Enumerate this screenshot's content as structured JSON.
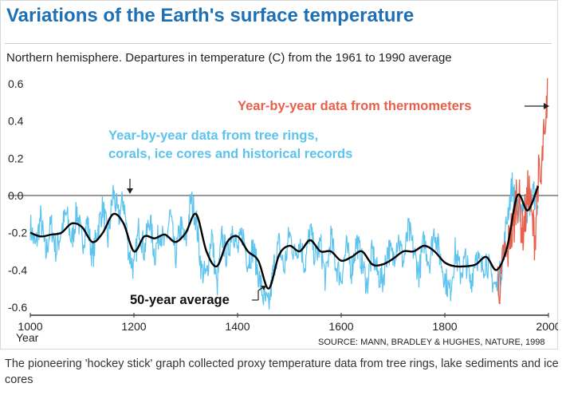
{
  "chart_data": {
    "type": "line",
    "title": "Variations of the Earth's surface temperature",
    "subtitle": "Northern hemisphere. Departures in temperature (C) from the 1961 to 1990 average",
    "xlabel": "Year",
    "ylabel": "",
    "xlim": [
      1000,
      2000
    ],
    "ylim": [
      -0.62,
      0.68
    ],
    "x_ticks": [
      "1000",
      "1200",
      "1400",
      "1600",
      "1800",
      "2000"
    ],
    "y_ticks": [
      "0.6",
      "0.4",
      "0.2",
      "0.0",
      "-0.2",
      "-0.4",
      "-0.6"
    ],
    "grid": "zero line only",
    "colors": {
      "proxy": "#5cc3ee",
      "thermometer": "#e8604a",
      "average": "#000000",
      "title": "#1e6fb4"
    },
    "annotations": {
      "thermometers": "Year-by-year data from thermometers",
      "proxy_line1": "Year-by-year data from tree rings,",
      "proxy_line2": "corals, ice cores and historical records",
      "average": "50-year average"
    },
    "source": "SOURCE: MANN, BRADLEY & HUGHES, NATURE, 1998",
    "series": [
      {
        "name": "50-year average",
        "x": [
          1000,
          1020,
          1040,
          1060,
          1080,
          1100,
          1120,
          1140,
          1160,
          1180,
          1200,
          1220,
          1240,
          1260,
          1280,
          1300,
          1320,
          1340,
          1360,
          1380,
          1400,
          1420,
          1440,
          1460,
          1480,
          1500,
          1520,
          1540,
          1560,
          1580,
          1600,
          1620,
          1640,
          1660,
          1680,
          1700,
          1720,
          1740,
          1760,
          1780,
          1800,
          1820,
          1840,
          1860,
          1880,
          1900,
          1920,
          1940,
          1960,
          1980
        ],
        "values": [
          -0.2,
          -0.22,
          -0.21,
          -0.2,
          -0.15,
          -0.17,
          -0.25,
          -0.2,
          -0.1,
          -0.15,
          -0.3,
          -0.22,
          -0.23,
          -0.21,
          -0.25,
          -0.2,
          -0.1,
          -0.3,
          -0.38,
          -0.25,
          -0.22,
          -0.3,
          -0.35,
          -0.5,
          -0.32,
          -0.27,
          -0.3,
          -0.24,
          -0.3,
          -0.3,
          -0.35,
          -0.33,
          -0.3,
          -0.37,
          -0.37,
          -0.34,
          -0.3,
          -0.3,
          -0.27,
          -0.3,
          -0.36,
          -0.38,
          -0.38,
          -0.37,
          -0.33,
          -0.4,
          -0.28,
          0.0,
          -0.08,
          0.05
        ]
      },
      {
        "name": "Year-by-year data from tree rings, corals, ice cores and historical records",
        "x": [
          1000,
          1010,
          1020,
          1030,
          1040,
          1050,
          1060,
          1070,
          1080,
          1090,
          1100,
          1110,
          1120,
          1130,
          1140,
          1150,
          1160,
          1170,
          1180,
          1190,
          1200,
          1210,
          1220,
          1230,
          1240,
          1250,
          1260,
          1270,
          1280,
          1290,
          1300,
          1310,
          1320,
          1330,
          1340,
          1350,
          1360,
          1370,
          1380,
          1390,
          1400,
          1410,
          1420,
          1430,
          1440,
          1450,
          1460,
          1470,
          1480,
          1490,
          1500,
          1510,
          1520,
          1530,
          1540,
          1550,
          1560,
          1570,
          1580,
          1590,
          1600,
          1610,
          1620,
          1630,
          1640,
          1650,
          1660,
          1670,
          1680,
          1690,
          1700,
          1710,
          1720,
          1730,
          1740,
          1750,
          1760,
          1770,
          1780,
          1790,
          1800,
          1810,
          1820,
          1830,
          1840,
          1850,
          1860,
          1870,
          1880,
          1890,
          1900,
          1910,
          1920,
          1930,
          1940,
          1950,
          1960,
          1970,
          1980
        ],
        "values": [
          -0.16,
          -0.28,
          -0.12,
          -0.32,
          -0.15,
          -0.3,
          -0.18,
          -0.1,
          -0.25,
          -0.08,
          -0.26,
          -0.14,
          -0.34,
          -0.18,
          -0.06,
          -0.24,
          0.02,
          -0.12,
          -0.02,
          -0.3,
          -0.4,
          -0.16,
          -0.3,
          -0.12,
          -0.32,
          -0.18,
          -0.28,
          -0.1,
          -0.34,
          -0.16,
          -0.26,
          -0.02,
          -0.12,
          -0.4,
          -0.44,
          -0.2,
          -0.5,
          -0.22,
          -0.34,
          -0.16,
          -0.3,
          -0.2,
          -0.36,
          -0.28,
          -0.42,
          -0.55,
          -0.6,
          -0.38,
          -0.26,
          -0.4,
          -0.2,
          -0.32,
          -0.24,
          -0.38,
          -0.18,
          -0.34,
          -0.26,
          -0.46,
          -0.22,
          -0.38,
          -0.44,
          -0.28,
          -0.4,
          -0.24,
          -0.36,
          -0.48,
          -0.3,
          -0.42,
          -0.46,
          -0.28,
          -0.34,
          -0.22,
          -0.36,
          -0.18,
          -0.3,
          -0.42,
          -0.24,
          -0.36,
          -0.18,
          -0.32,
          -0.44,
          -0.52,
          -0.3,
          -0.42,
          -0.34,
          -0.48,
          -0.3,
          -0.4,
          -0.34,
          -0.44,
          -0.5,
          -0.38,
          -0.12,
          0.06,
          -0.1,
          -0.04,
          -0.08,
          0.02,
          -0.06
        ]
      },
      {
        "name": "Year-by-year data from thermometers",
        "x": [
          1902,
          1908,
          1914,
          1920,
          1926,
          1932,
          1938,
          1944,
          1950,
          1956,
          1962,
          1968,
          1974,
          1980,
          1986,
          1990,
          1994,
          1998
        ],
        "values": [
          -0.45,
          -0.5,
          -0.3,
          -0.35,
          -0.18,
          -0.22,
          0.02,
          -0.05,
          -0.2,
          -0.1,
          0.05,
          -0.15,
          -0.22,
          0.1,
          0.05,
          0.3,
          0.25,
          0.62
        ]
      }
    ]
  },
  "caption": "The pioneering 'hockey stick' graph collected proxy temperature data from tree rings, lake sediments and ice cores"
}
